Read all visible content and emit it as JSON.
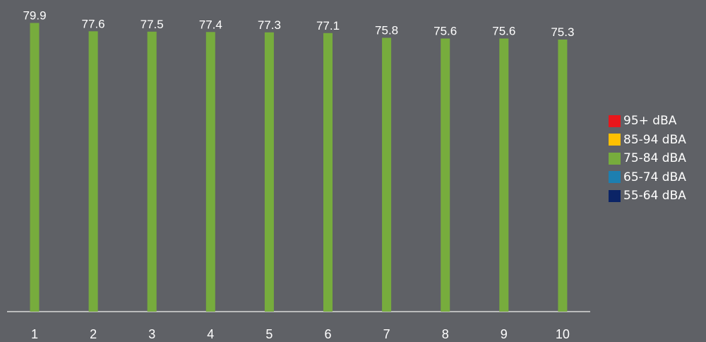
{
  "chart_data": {
    "type": "bar",
    "title": "",
    "xlabel": "",
    "ylabel": "",
    "categories": [
      "1",
      "2",
      "3",
      "4",
      "5",
      "6",
      "7",
      "8",
      "9",
      "10"
    ],
    "values": [
      79.9,
      77.6,
      77.5,
      77.4,
      77.3,
      77.1,
      75.8,
      75.6,
      75.6,
      75.3
    ],
    "value_labels": [
      "79.9",
      "77.6",
      "77.5",
      "77.4",
      "77.3",
      "77.1",
      "75.8",
      "75.6",
      "75.6",
      "75.3"
    ],
    "ylim": [
      0,
      80
    ],
    "grid": false,
    "bar_color": "#77ac3d",
    "legend_position": "right",
    "legend": [
      {
        "label": "95+ dBA",
        "color": "#e8161b"
      },
      {
        "label": "85-94 dBA",
        "color": "#ffc000"
      },
      {
        "label": "75-84 dBA",
        "color": "#77ac3d"
      },
      {
        "label": "65-74 dBA",
        "color": "#1d7fb0"
      },
      {
        "label": "55-64 dBA",
        "color": "#0b2466"
      }
    ]
  }
}
